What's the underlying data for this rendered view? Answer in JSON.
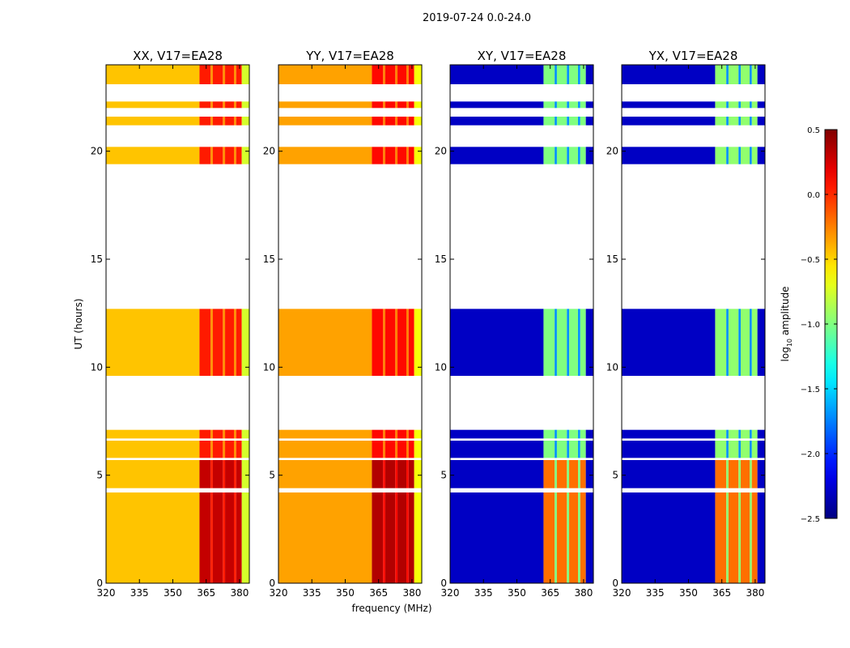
{
  "chart_data": {
    "type": "heatmap",
    "title": "2019-07-24 0.0-24.0",
    "xlabel": "frequency (MHz)",
    "ylabel": "UT (hours)",
    "xlim": [
      320,
      384.4
    ],
    "ylim": [
      0,
      24
    ],
    "xticks": [
      320,
      335,
      350,
      365,
      380
    ],
    "yticks": [
      0,
      5,
      10,
      15,
      20
    ],
    "colorbar": {
      "label": "log10 amplitude",
      "label_main": "log",
      "label_sub": "10",
      "label_rest": " amplitude",
      "range": [
        -2.5,
        0.5
      ],
      "ticks": [
        "0.5",
        "0.0",
        "−0.5",
        "−1.0",
        "−1.5",
        "−2.0",
        "−2.5"
      ],
      "tick_values": [
        0.5,
        0.0,
        -0.5,
        -1.0,
        -1.5,
        -2.0,
        -2.5
      ],
      "colormap": "jet"
    },
    "time_segments": [
      [
        0,
        3.0
      ],
      [
        3.0,
        4.2
      ],
      [
        4.4,
        5.7
      ],
      [
        5.8,
        6.6
      ],
      [
        6.7,
        7.1
      ],
      [
        9.6,
        12.7
      ],
      [
        19.4,
        20.2
      ],
      [
        21.2,
        21.6
      ],
      [
        22.0,
        22.3
      ],
      [
        23.1,
        24.0
      ]
    ],
    "strong_segments": [
      0,
      1,
      2
    ],
    "freq_blocks": [
      [
        320,
        362,
        "base"
      ],
      [
        362,
        367,
        "band"
      ],
      [
        367,
        368,
        "gap"
      ],
      [
        368,
        372.5,
        "band"
      ],
      [
        372.5,
        373.5,
        "gap"
      ],
      [
        373.5,
        377.5,
        "band"
      ],
      [
        377.5,
        378.5,
        "gap"
      ],
      [
        378.5,
        381,
        "band"
      ],
      [
        381,
        384.4,
        "edge"
      ]
    ],
    "panels": [
      {
        "title": "XX, V17=EA28",
        "levels": {
          "base": -0.45,
          "band": 0.05,
          "gap": -0.3,
          "edge": -0.75
        },
        "strong_band": 0.3
      },
      {
        "title": "YY, V17=EA28",
        "levels": {
          "base": -0.35,
          "band": 0.1,
          "gap": -0.25,
          "edge": -0.65
        },
        "strong_band": 0.35
      },
      {
        "title": "XY, V17=EA28",
        "levels": {
          "base": -2.3,
          "band": -1.0,
          "gap": -1.7,
          "edge": -2.3
        },
        "strong_band": -0.2
      },
      {
        "title": "YX, V17=EA28",
        "levels": {
          "base": -2.3,
          "band": -0.95,
          "gap": -1.7,
          "edge": -2.3
        },
        "strong_band": -0.2
      }
    ]
  }
}
